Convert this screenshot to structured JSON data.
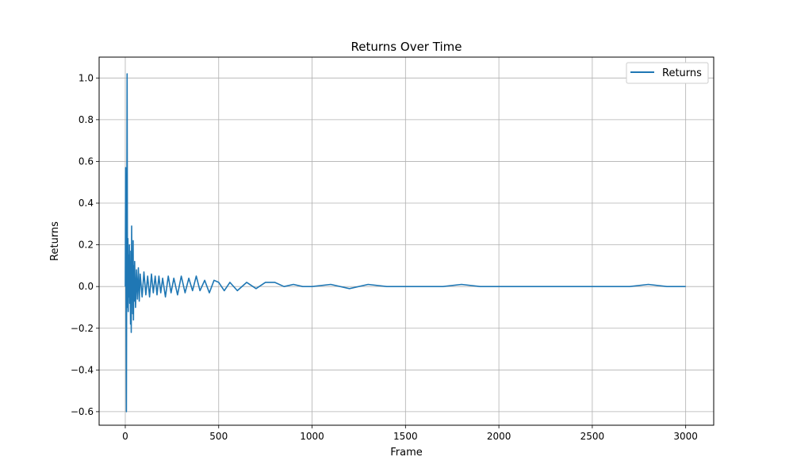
{
  "chart_data": {
    "type": "line",
    "title": "Returns Over Time",
    "xlabel": "Frame",
    "ylabel": "Returns",
    "xlim": [
      -140,
      3150
    ],
    "ylim": [
      -0.665,
      1.1
    ],
    "x_ticks": [
      0,
      500,
      1000,
      1500,
      2000,
      2500,
      3000
    ],
    "y_ticks": [
      -0.6,
      -0.4,
      -0.2,
      0.0,
      0.2,
      0.4,
      0.6,
      0.8,
      1.0
    ],
    "x_tick_labels": [
      "0",
      "500",
      "1000",
      "1500",
      "2000",
      "2500",
      "3000"
    ],
    "y_tick_labels": [
      "−0.6",
      "−0.4",
      "−0.2",
      "0.0",
      "0.2",
      "0.4",
      "0.6",
      "0.8",
      "1.0"
    ],
    "grid": true,
    "legend": {
      "position": "top-right",
      "entries": [
        "Returns"
      ]
    },
    "series": [
      {
        "name": "Returns",
        "color": "#1f77b4",
        "x": [
          0,
          2,
          4,
          6,
          8,
          10,
          12,
          14,
          16,
          18,
          20,
          22,
          24,
          26,
          28,
          30,
          32,
          34,
          36,
          38,
          40,
          42,
          44,
          46,
          48,
          50,
          55,
          60,
          65,
          70,
          75,
          80,
          90,
          100,
          110,
          120,
          130,
          140,
          150,
          160,
          170,
          180,
          190,
          200,
          215,
          230,
          245,
          260,
          280,
          300,
          320,
          340,
          360,
          380,
          400,
          425,
          450,
          475,
          500,
          530,
          560,
          600,
          650,
          700,
          750,
          800,
          850,
          900,
          950,
          1000,
          1100,
          1200,
          1300,
          1400,
          1500,
          1600,
          1700,
          1800,
          1900,
          2000,
          2100,
          2200,
          2300,
          2400,
          2500,
          2600,
          2700,
          2800,
          2900,
          3000
        ],
        "y": [
          0.0,
          0.57,
          -0.05,
          -0.6,
          0.3,
          1.02,
          -0.1,
          0.23,
          -0.12,
          0.15,
          -0.05,
          0.2,
          -0.08,
          0.12,
          -0.18,
          0.17,
          -0.22,
          0.29,
          -0.05,
          0.1,
          -0.13,
          0.22,
          -0.16,
          0.1,
          -0.07,
          0.12,
          -0.1,
          0.08,
          -0.06,
          0.09,
          -0.07,
          0.06,
          -0.05,
          0.07,
          -0.04,
          0.05,
          -0.05,
          0.06,
          -0.03,
          0.05,
          -0.04,
          0.05,
          -0.03,
          0.04,
          -0.05,
          0.05,
          -0.03,
          0.04,
          -0.04,
          0.05,
          -0.03,
          0.04,
          -0.02,
          0.05,
          -0.02,
          0.03,
          -0.03,
          0.03,
          0.02,
          -0.02,
          0.02,
          -0.02,
          0.02,
          -0.01,
          0.02,
          0.02,
          0.0,
          0.01,
          0.0,
          0.0,
          0.01,
          -0.01,
          0.01,
          0.0,
          0.0,
          0.0,
          0.0,
          0.01,
          0.0,
          0.0,
          0.0,
          0.0,
          0.0,
          0.0,
          0.0,
          0.0,
          0.0,
          0.01,
          0.0,
          0.0
        ]
      }
    ]
  }
}
